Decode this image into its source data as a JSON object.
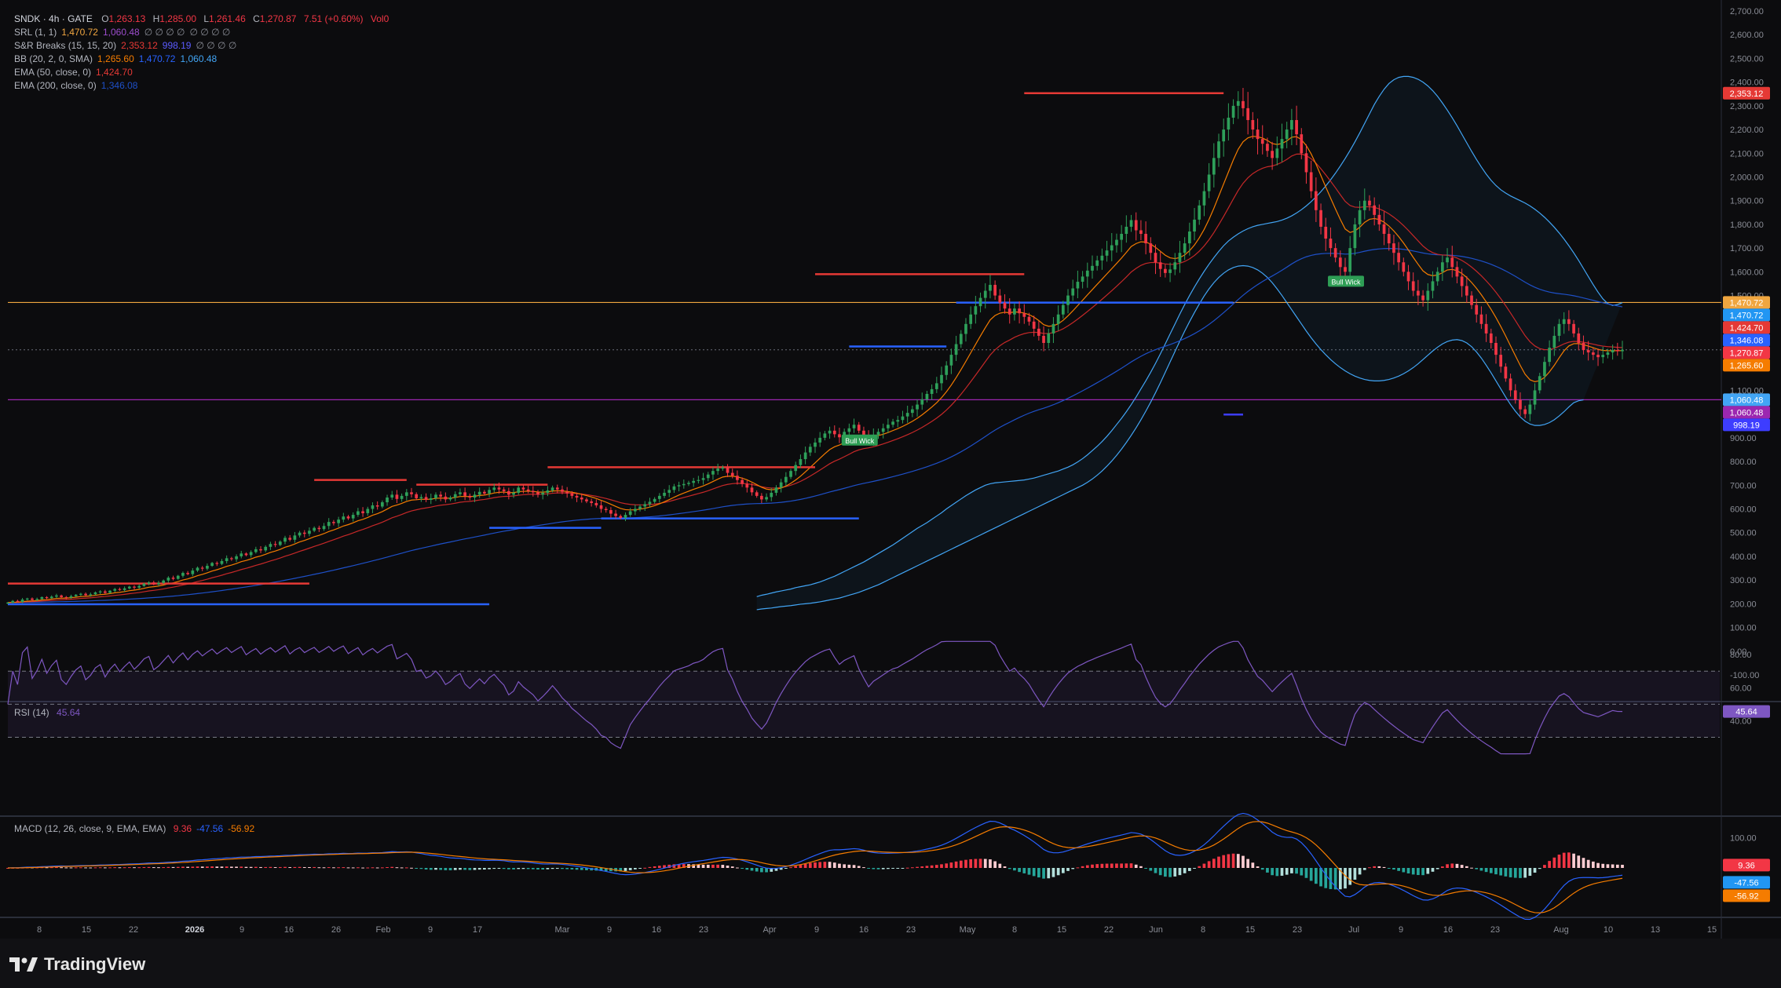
{
  "symbol_header": {
    "symbol": "SNDK",
    "interval": "4h",
    "exchange": "GATE",
    "open_label": "O",
    "open": "1,263.13",
    "high_label": "H",
    "high": "1,285.00",
    "low_label": "L",
    "low": "1,261.46",
    "close_label": "C",
    "close": "1,270.87",
    "change": "7.51 (+0.60%)",
    "volume": "Vol0"
  },
  "indicators": [
    {
      "name": "SRL (1, 1)",
      "values": [
        {
          "v": "1,470.72",
          "color": "#f0a640"
        },
        {
          "v": "1,060.48",
          "color": "#9c4dcc"
        },
        {
          "v": "∅ ∅ ∅ ∅",
          "color": "#8a8d96"
        },
        {
          "v": "∅ ∅ ∅ ∅",
          "color": "#8a8d96"
        }
      ]
    },
    {
      "name": "S&R Breaks (15, 15, 20)",
      "values": [
        {
          "v": "2,353.12",
          "color": "#e53935"
        },
        {
          "v": "998.19",
          "color": "#5b5bff"
        },
        {
          "v": "∅ ∅ ∅ ∅",
          "color": "#8a8d96"
        }
      ]
    },
    {
      "name": "BB (20, 2, 0, SMA)",
      "values": [
        {
          "v": "1,265.60",
          "color": "#f57c00"
        },
        {
          "v": "1,470.72",
          "color": "#2962ff"
        },
        {
          "v": "1,060.48",
          "color": "#42a5f5"
        }
      ]
    },
    {
      "name": "EMA (50, close, 0)",
      "values": [
        {
          "v": "1,424.70",
          "color": "#e53935"
        }
      ]
    },
    {
      "name": "EMA (200, close, 0)",
      "values": [
        {
          "v": "1,346.08",
          "color": "#1e50c8"
        }
      ]
    }
  ],
  "rsi": {
    "title": "RSI (14)",
    "value": "45.64",
    "levels": [
      80,
      70,
      60,
      50,
      40,
      30
    ],
    "level_labels": [
      "80.00",
      "60.00",
      "40.00"
    ],
    "badge": "45.64"
  },
  "macd": {
    "title": "MACD (12, 26, close, 9, EMA, EMA)",
    "values": [
      {
        "v": "9.36",
        "color": "#f23645"
      },
      {
        "v": "-47.56",
        "color": "#2962ff"
      },
      {
        "v": "-56.92",
        "color": "#f57c00"
      }
    ],
    "axis_labels": [
      "100.00"
    ],
    "badges": [
      {
        "v": "9.36",
        "bg": "#f23645"
      },
      {
        "v": "-47.56",
        "bg": "#2196f3"
      },
      {
        "v": "-56.92",
        "bg": "#f57c00"
      }
    ]
  },
  "price_axis": {
    "ticks": [
      "2,700.00",
      "2,600.00",
      "2,500.00",
      "2,400.00",
      "2,300.00",
      "2,200.00",
      "2,100.00",
      "2,000.00",
      "1,900.00",
      "1,800.00",
      "1,700.00",
      "1,600.00",
      "1,500.00",
      "1,400.00",
      "1,300.00",
      "1,200.00",
      "1,100.00",
      "1,000.00",
      "900.00",
      "800.00",
      "700.00",
      "600.00",
      "500.00",
      "400.00",
      "300.00",
      "200.00",
      "100.00",
      "0.00",
      "-100.00"
    ],
    "badges": [
      {
        "v": "2,353.12",
        "bg": "#e53935",
        "price": 2353.12
      },
      {
        "v": "1,470.72",
        "bg": "#f0a640",
        "price": 1470.72
      },
      {
        "v": "1,470.72",
        "bg": "#2196f3",
        "price": 1470.72
      },
      {
        "v": "1,424.70",
        "bg": "#e53935",
        "price": 1424.7
      },
      {
        "v": "1,346.08",
        "bg": "#2962ff",
        "price": 1346.08
      },
      {
        "v": "1,270.87",
        "bg": "#f23645",
        "price": 1270.87
      },
      {
        "v": "1,265.60",
        "bg": "#f57c00",
        "price": 1265.6
      },
      {
        "v": "1,060.48",
        "bg": "#42a5f5",
        "price": 1060.48
      },
      {
        "v": "1,060.48",
        "bg": "#9c27b0",
        "price": 1060.48
      },
      {
        "v": "998.19",
        "bg": "#3d3dff",
        "price": 998.19
      }
    ]
  },
  "time_axis": [
    "8",
    "15",
    "22",
    "2026",
    "9",
    "16",
    "26",
    "Feb",
    "9",
    "17",
    "Mar",
    "9",
    "16",
    "23",
    "Apr",
    "9",
    "16",
    "23",
    "May",
    "8",
    "15",
    "22",
    "Jun",
    "8",
    "15",
    "23",
    "Jul",
    "9",
    "16",
    "23",
    "Aug",
    "10",
    "13",
    "15"
  ],
  "annotations": [
    {
      "text": "Bull Wick",
      "color": "#2e9e55",
      "date_index": 163
    },
    {
      "text": "Bull Wick",
      "color": "#2e9e55",
      "date_index": 257
    }
  ],
  "chart_data": {
    "type": "candlestick",
    "title": "SNDK · 4h · GATE",
    "ylim": [
      -100,
      2700
    ],
    "ylabel": "",
    "xlabel": "",
    "horizontal_levels": [
      {
        "name": "SRL resistance",
        "value": 1470.72,
        "color": "#f0a640"
      },
      {
        "name": "SRL support",
        "value": 1060.48,
        "color": "#9c27b0"
      },
      {
        "name": "S&R Breaks resistance",
        "value": 2353.12,
        "color": "#e53935"
      }
    ],
    "closes": [
      205,
      212,
      208,
      218,
      222,
      216,
      220,
      228,
      224,
      230,
      235,
      228,
      226,
      232,
      238,
      242,
      236,
      240,
      248,
      252,
      246,
      255,
      262,
      258,
      265,
      272,
      268,
      275,
      285,
      290,
      282,
      288,
      298,
      310,
      305,
      318,
      330,
      325,
      340,
      352,
      348,
      360,
      372,
      368,
      380,
      392,
      388,
      400,
      412,
      405,
      418,
      430,
      425,
      440,
      452,
      448,
      462,
      478,
      470,
      488,
      500,
      495,
      508,
      520,
      515,
      528,
      545,
      540,
      555,
      568,
      560,
      575,
      590,
      582,
      600,
      615,
      610,
      628,
      648,
      660,
      642,
      655,
      670,
      662,
      645,
      650,
      638,
      645,
      660,
      652,
      640,
      648,
      662,
      670,
      655,
      648,
      660,
      672,
      665,
      680,
      690,
      682,
      675,
      660,
      668,
      690,
      682,
      676,
      670,
      660,
      668,
      678,
      690,
      682,
      672,
      665,
      655,
      648,
      640,
      632,
      625,
      615,
      600,
      595,
      580,
      570,
      562,
      575,
      590,
      600,
      610,
      620,
      630,
      642,
      655,
      668,
      680,
      695,
      700,
      705,
      710,
      718,
      722,
      730,
      745,
      760,
      770,
      775,
      752,
      740,
      722,
      705,
      690,
      670,
      655,
      640,
      650,
      668,
      690,
      712,
      735,
      760,
      785,
      810,
      838,
      862,
      880,
      900,
      918,
      930,
      915,
      902,
      925,
      940,
      955,
      930,
      910,
      890,
      912,
      925,
      940,
      955,
      968,
      975,
      990,
      1005,
      1020,
      1040,
      1062,
      1085,
      1105,
      1130,
      1165,
      1205,
      1250,
      1295,
      1338,
      1380,
      1420,
      1455,
      1490,
      1520,
      1545,
      1500,
      1470,
      1445,
      1420,
      1445,
      1425,
      1410,
      1390,
      1360,
      1330,
      1300,
      1340,
      1380,
      1420,
      1460,
      1500,
      1530,
      1558,
      1580,
      1605,
      1625,
      1648,
      1668,
      1690,
      1712,
      1735,
      1760,
      1790,
      1818,
      1775,
      1760,
      1720,
      1680,
      1640,
      1612,
      1595,
      1610,
      1640,
      1680,
      1720,
      1770,
      1820,
      1880,
      1940,
      2010,
      2080,
      2150,
      2200,
      2250,
      2300,
      2320,
      2290,
      2240,
      2200,
      2160,
      2140,
      2110,
      2080,
      2120,
      2160,
      2200,
      2240,
      2180,
      2100,
      2020,
      1940,
      1860,
      1790,
      1740,
      1700,
      1660,
      1620,
      1600,
      1700,
      1800,
      1860,
      1900,
      1880,
      1840,
      1800,
      1760,
      1720,
      1680,
      1640,
      1600,
      1560,
      1520,
      1500,
      1480,
      1520,
      1560,
      1600,
      1640,
      1660,
      1620,
      1580,
      1540,
      1500,
      1460,
      1420,
      1380,
      1340,
      1300,
      1250,
      1200,
      1150,
      1100,
      1060,
      1020,
      1000,
      1040,
      1100,
      1160,
      1220,
      1280,
      1330,
      1380,
      1400,
      1380,
      1340,
      1300,
      1270,
      1260,
      1250,
      1240,
      1250,
      1260,
      1270,
      1265,
      1271
    ],
    "bb_upper": [
      230,
      236,
      240,
      245,
      250,
      254,
      258,
      262,
      268,
      272,
      276,
      280,
      286,
      292,
      300,
      308,
      316,
      326,
      336,
      346,
      356,
      366,
      376,
      388,
      400,
      412,
      424,
      436,
      448,
      462,
      476,
      490,
      504,
      518,
      530,
      542,
      556,
      570,
      584,
      600,
      614,
      628,
      642,
      656,
      668,
      680,
      690,
      700,
      706,
      710,
      712,
      714,
      716,
      718,
      720,
      722,
      726,
      730,
      736,
      742,
      748,
      754,
      760,
      768,
      776,
      786,
      798,
      812,
      828,
      846,
      864,
      884,
      906,
      930,
      956,
      982,
      1010,
      1040,
      1072,
      1106,
      1140,
      1176,
      1214,
      1254,
      1296,
      1338,
      1380,
      1422,
      1462,
      1500,
      1536,
      1570,
      1602,
      1632,
      1660,
      1686,
      1710,
      1730,
      1746,
      1760,
      1772,
      1782,
      1790,
      1796,
      1800,
      1804,
      1808,
      1812,
      1818,
      1826,
      1836,
      1848,
      1862,
      1878,
      1896,
      1916,
      1938,
      1962,
      1988,
      2016,
      2046,
      2078,
      2112,
      2148,
      2186,
      2226,
      2266,
      2306,
      2340,
      2370,
      2394,
      2410,
      2420,
      2424,
      2424,
      2420,
      2412,
      2400,
      2384,
      2364,
      2340,
      2312,
      2282,
      2250,
      2216,
      2180,
      2144,
      2108,
      2074,
      2042,
      2012,
      1986,
      1964,
      1946,
      1932,
      1920,
      1910,
      1900,
      1890,
      1878,
      1864,
      1848,
      1830,
      1810,
      1788,
      1764,
      1738,
      1710,
      1680,
      1648,
      1614,
      1580,
      1546,
      1514,
      1486,
      1466,
      1458,
      1462,
      1470
    ],
    "bb_lower": [
      175,
      178,
      180,
      182,
      185,
      188,
      190,
      192,
      195,
      198,
      200,
      202,
      205,
      208,
      212,
      216,
      220,
      224,
      230,
      236,
      242,
      248,
      256,
      264,
      272,
      280,
      290,
      300,
      310,
      320,
      330,
      340,
      350,
      360,
      370,
      380,
      390,
      400,
      410,
      420,
      430,
      440,
      450,
      460,
      470,
      480,
      490,
      500,
      510,
      520,
      530,
      540,
      550,
      560,
      570,
      580,
      590,
      600,
      610,
      620,
      630,
      640,
      650,
      660,
      670,
      680,
      690,
      700,
      712,
      726,
      742,
      760,
      780,
      802,
      826,
      852,
      880,
      910,
      942,
      976,
      1012,
      1050,
      1090,
      1132,
      1176,
      1220,
      1264,
      1308,
      1350,
      1390,
      1428,
      1464,
      1498,
      1528,
      1554,
      1576,
      1594,
      1608,
      1618,
      1624,
      1626,
      1624,
      1618,
      1608,
      1594,
      1576,
      1554,
      1528,
      1500,
      1470,
      1440,
      1410,
      1380,
      1350,
      1322,
      1296,
      1272,
      1250,
      1230,
      1212,
      1196,
      1182,
      1170,
      1160,
      1152,
      1146,
      1142,
      1140,
      1140,
      1142,
      1146,
      1152,
      1160,
      1170,
      1182,
      1196,
      1212,
      1230,
      1248,
      1266,
      1282,
      1296,
      1306,
      1312,
      1314,
      1310,
      1300,
      1284,
      1262,
      1236,
      1206,
      1174,
      1140,
      1106,
      1072,
      1040,
      1012,
      988,
      970,
      958,
      952,
      952,
      956,
      964,
      976,
      992,
      1010,
      1030,
      1048,
      1056,
      1060
    ],
    "ema50_last": 1424.7,
    "ema200_last": 1346.08,
    "rsi_last": 45.64,
    "macd_last": -47.56,
    "signal_last": -56.92,
    "histogram_last": 9.36
  }
}
